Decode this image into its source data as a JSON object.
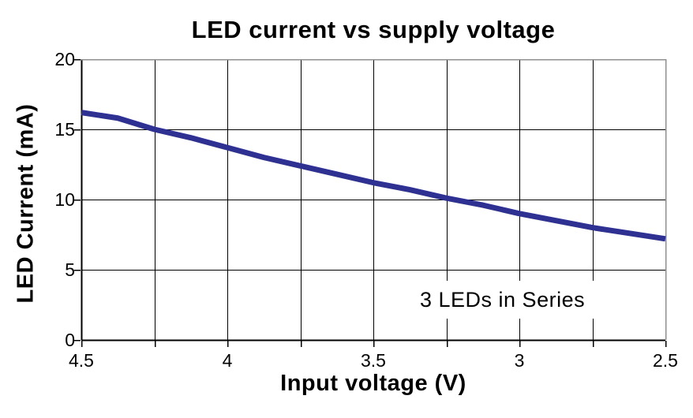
{
  "figure": {
    "title": "LED current vs supply voltage",
    "x_axis_title": "Input voltage (V)",
    "y_axis_title": "LED Current (mA)"
  },
  "chart_data": {
    "type": "line",
    "title": "LED current vs supply voltage",
    "xlabel": "Input voltage (V)",
    "ylabel": "LED Current (mA)",
    "grid": true,
    "legend": false,
    "annotation": {
      "text": "3 LEDs in Series",
      "x": 3.0,
      "y": 2.9
    },
    "x_axis": {
      "min": 4.5,
      "max": 2.5,
      "reversed": true,
      "gridline_step": 0.25,
      "tick_labels": [
        "4.5",
        "4",
        "3.5",
        "3",
        "2.5"
      ]
    },
    "y_axis": {
      "min": 0,
      "max": 20,
      "gridline_step": 5,
      "tick_labels": [
        "20",
        "15",
        "10",
        "5",
        "0"
      ]
    },
    "series": [
      {
        "name": "LED current",
        "color": "#2e3191",
        "x": [
          4.5,
          4.375,
          4.25,
          4.125,
          4.0,
          3.875,
          3.75,
          3.625,
          3.5,
          3.375,
          3.25,
          3.125,
          3.0,
          2.875,
          2.75,
          2.625,
          2.5
        ],
        "y": [
          16.2,
          15.8,
          15.0,
          14.4,
          13.7,
          13.0,
          12.4,
          11.8,
          11.2,
          10.7,
          10.1,
          9.6,
          9.0,
          8.5,
          8.0,
          7.6,
          7.2
        ]
      }
    ]
  },
  "style": {
    "line_color": "#2e3191",
    "gridline_color": "#000000",
    "axis_color": "#000000",
    "frame_color": "#8f8f8f",
    "background": "#ffffff",
    "text_color": "#000000"
  }
}
